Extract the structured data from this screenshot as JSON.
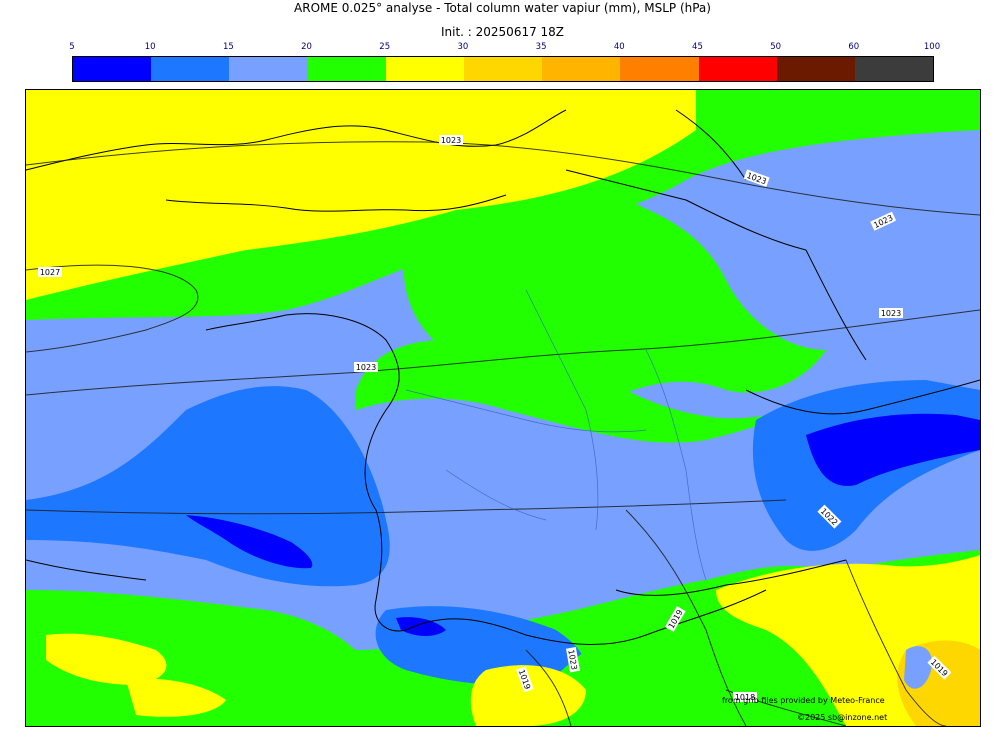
{
  "title": "AROME 0.025° analyse - Total column water vapiur (mm), MSLP (hPa)",
  "init": "Init. : 20250617 18Z",
  "colorbar": {
    "ticks": [
      "5",
      "10",
      "15",
      "20",
      "25",
      "30",
      "35",
      "40",
      "45",
      "50",
      "60",
      "100"
    ],
    "colors": [
      "#0000ff",
      "#1e78ff",
      "#78a0ff",
      "#22ff00",
      "#ffff00",
      "#ffd700",
      "#ffb400",
      "#ff8000",
      "#ff0000",
      "#6b1a00",
      "#3c3c3c"
    ]
  },
  "isobars": {
    "l1": "1023",
    "l2": "1027",
    "l3": "1023",
    "l4": "1023",
    "l5": "1023",
    "l6": "1023",
    "l7": "1022",
    "l8": "1019",
    "l9": "1023",
    "l10": "1019",
    "l11": "1018",
    "l12": "1019"
  },
  "credits": {
    "source": "from grib files provided by Meteo-France",
    "copyright": "©2025 sb@inzone.net"
  }
}
